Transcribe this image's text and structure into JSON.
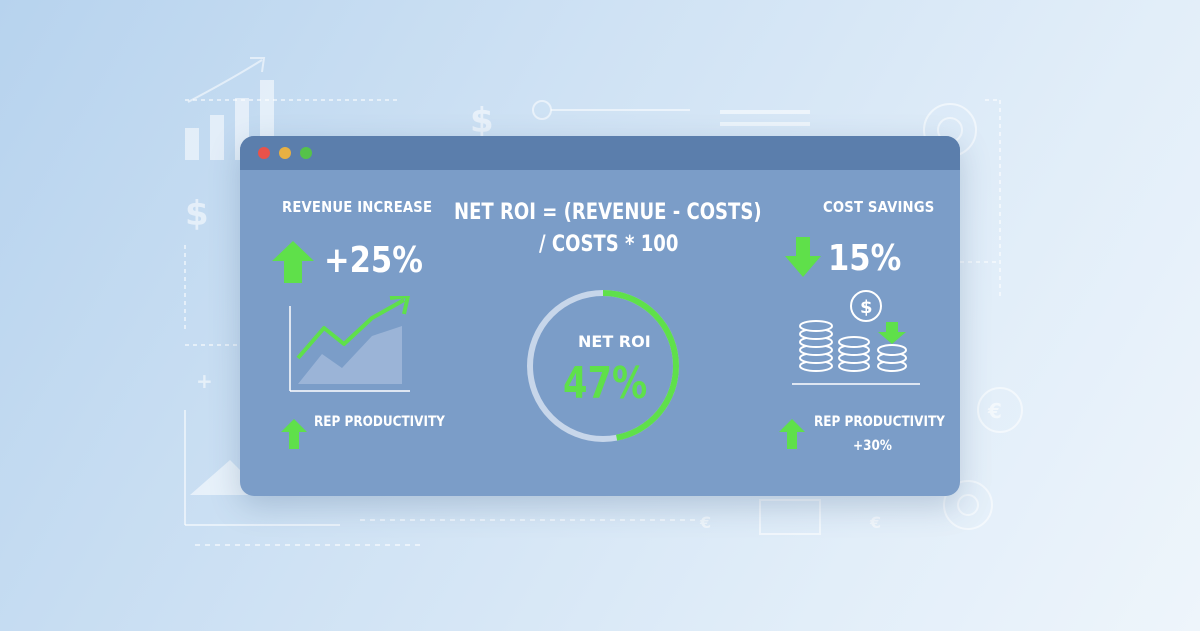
{
  "window": {
    "controls": [
      "close",
      "minimize",
      "maximize"
    ],
    "accent_green": "#5fe04a",
    "panel_color": "#7b9dc8"
  },
  "revenue": {
    "title": "REVENUE INCREASE",
    "value": "+25%",
    "icon": "arrow-up-icon",
    "chart_icon": "area-trend-chart-icon",
    "productivity_label": "REP PRODUCTIVITY"
  },
  "formula": {
    "line1": "NET ROI = (REVENUE - COSTS)",
    "line2": "/ COSTS * 100"
  },
  "gauge": {
    "label": "NET ROI",
    "value": "47%",
    "fill_fraction": 0.47
  },
  "costs": {
    "title": "COST SAVINGS",
    "value": "15%",
    "icon": "arrow-down-icon",
    "coins_icon": "coin-stacks-icon",
    "productivity_label": "REP PRODUCTIVITY",
    "productivity_value": "+30%"
  }
}
